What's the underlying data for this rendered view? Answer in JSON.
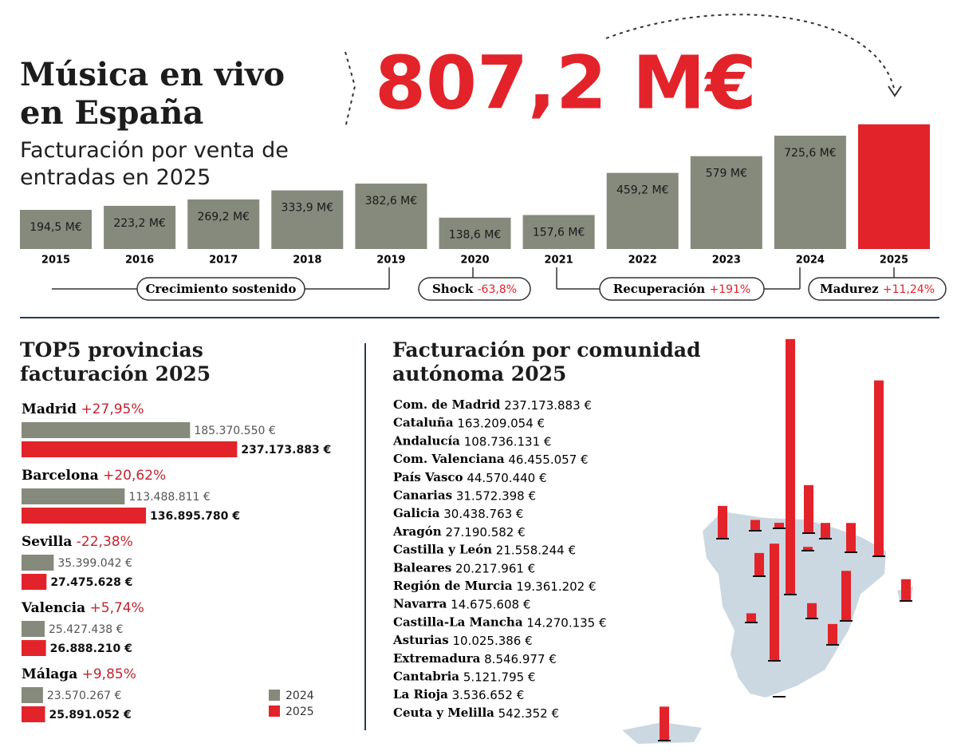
{
  "chart_data": [
    {
      "type": "bar",
      "title": "Música en vivo en España",
      "subtitle": "Facturación por venta de entradas en 2025",
      "categories": [
        "2015",
        "2016",
        "2017",
        "2018",
        "2019",
        "2020",
        "2021",
        "2022",
        "2023",
        "2024",
        "2025"
      ],
      "values": [
        194.5,
        223.2,
        269.2,
        333.9,
        382.6,
        138.6,
        157.6,
        459.2,
        579,
        725.6,
        807.2
      ],
      "value_labels": [
        "194,5 M€",
        "223,2 M€",
        "269,2 M€",
        "333,9 M€",
        "382,6 M€",
        "138,6 M€",
        "157,6 M€",
        "459,2 M€",
        "579 M€",
        "725,6 M€",
        "807,2 M€"
      ],
      "colors": [
        "#858a7c",
        "#858a7c",
        "#858a7c",
        "#858a7c",
        "#858a7c",
        "#858a7c",
        "#858a7c",
        "#858a7c",
        "#858a7c",
        "#858a7c",
        "#e3232a"
      ],
      "annotations": [
        {
          "text": "Crecimiento sostenido"
        },
        {
          "text": "Shock",
          "change": "-63,8%"
        },
        {
          "text": "Recuperación",
          "change": "+191%"
        },
        {
          "text": "Madurez",
          "change": "+11,24%"
        }
      ]
    },
    {
      "type": "hbar",
      "title": "TOP5 provincias facturación 2025",
      "categories": [
        "Madrid",
        "Barcelona",
        "Sevilla",
        "Valencia",
        "Málaga"
      ],
      "changes": [
        "+27,95%",
        "+20,62%",
        "-22,38%",
        "+5,74%",
        "+9,85%"
      ],
      "series": [
        {
          "name": "2024",
          "color": "#858a7c",
          "values": [
            185370550,
            113488811,
            35399042,
            25427438,
            23570267
          ],
          "value_labels": [
            "185.370.550 €",
            "113.488.811 €",
            "35.399.042 €",
            "25.427.438 €",
            "23.570.267 €"
          ]
        },
        {
          "name": "2025",
          "color": "#e3232a",
          "values": [
            237173883,
            136895780,
            27475628,
            26888210,
            25891052
          ],
          "value_labels": [
            "237.173.883 €",
            "136.895.780 €",
            "27.475.628 €",
            "26.888.210 €",
            "25.891.052 €"
          ]
        }
      ]
    },
    {
      "type": "map-bar",
      "title": "Facturación por comunidad autónoma 2025",
      "color": "#e3232a",
      "categories": [
        "Com. de Madrid",
        "Cataluña",
        "Andalucía",
        "Com. Valenciana",
        "País Vasco",
        "Canarias",
        "Galicia",
        "Aragón",
        "Castilla y León",
        "Baleares",
        "Región de Murcia",
        "Navarra",
        "Castilla-La Mancha",
        "Asturias",
        "Extremadura",
        "Cantabria",
        "La Rioja",
        "Ceuta y Melilla"
      ],
      "values": [
        237173883,
        163209054,
        108736131,
        46455057,
        44570440,
        31572398,
        30438763,
        27190582,
        21558244,
        20217961,
        19361202,
        14675608,
        14270135,
        10025386,
        8546977,
        5121795,
        3536652,
        542352
      ],
      "value_labels": [
        "237.173.883 €",
        "163.209.054 €",
        "108.736.131 €",
        "46.455.057 €",
        "44.570.440 €",
        "31.572.398 €",
        "30.438.763 €",
        "27.190.582 €",
        "21.558.244 €",
        "20.217.961 €",
        "19.361.202 €",
        "14.675.608 €",
        "14.270.135 €",
        "10.025.386 €",
        "8.546.977 €",
        "5.121.795 €",
        "3.536.652 €",
        "542.352 €"
      ]
    }
  ]
}
